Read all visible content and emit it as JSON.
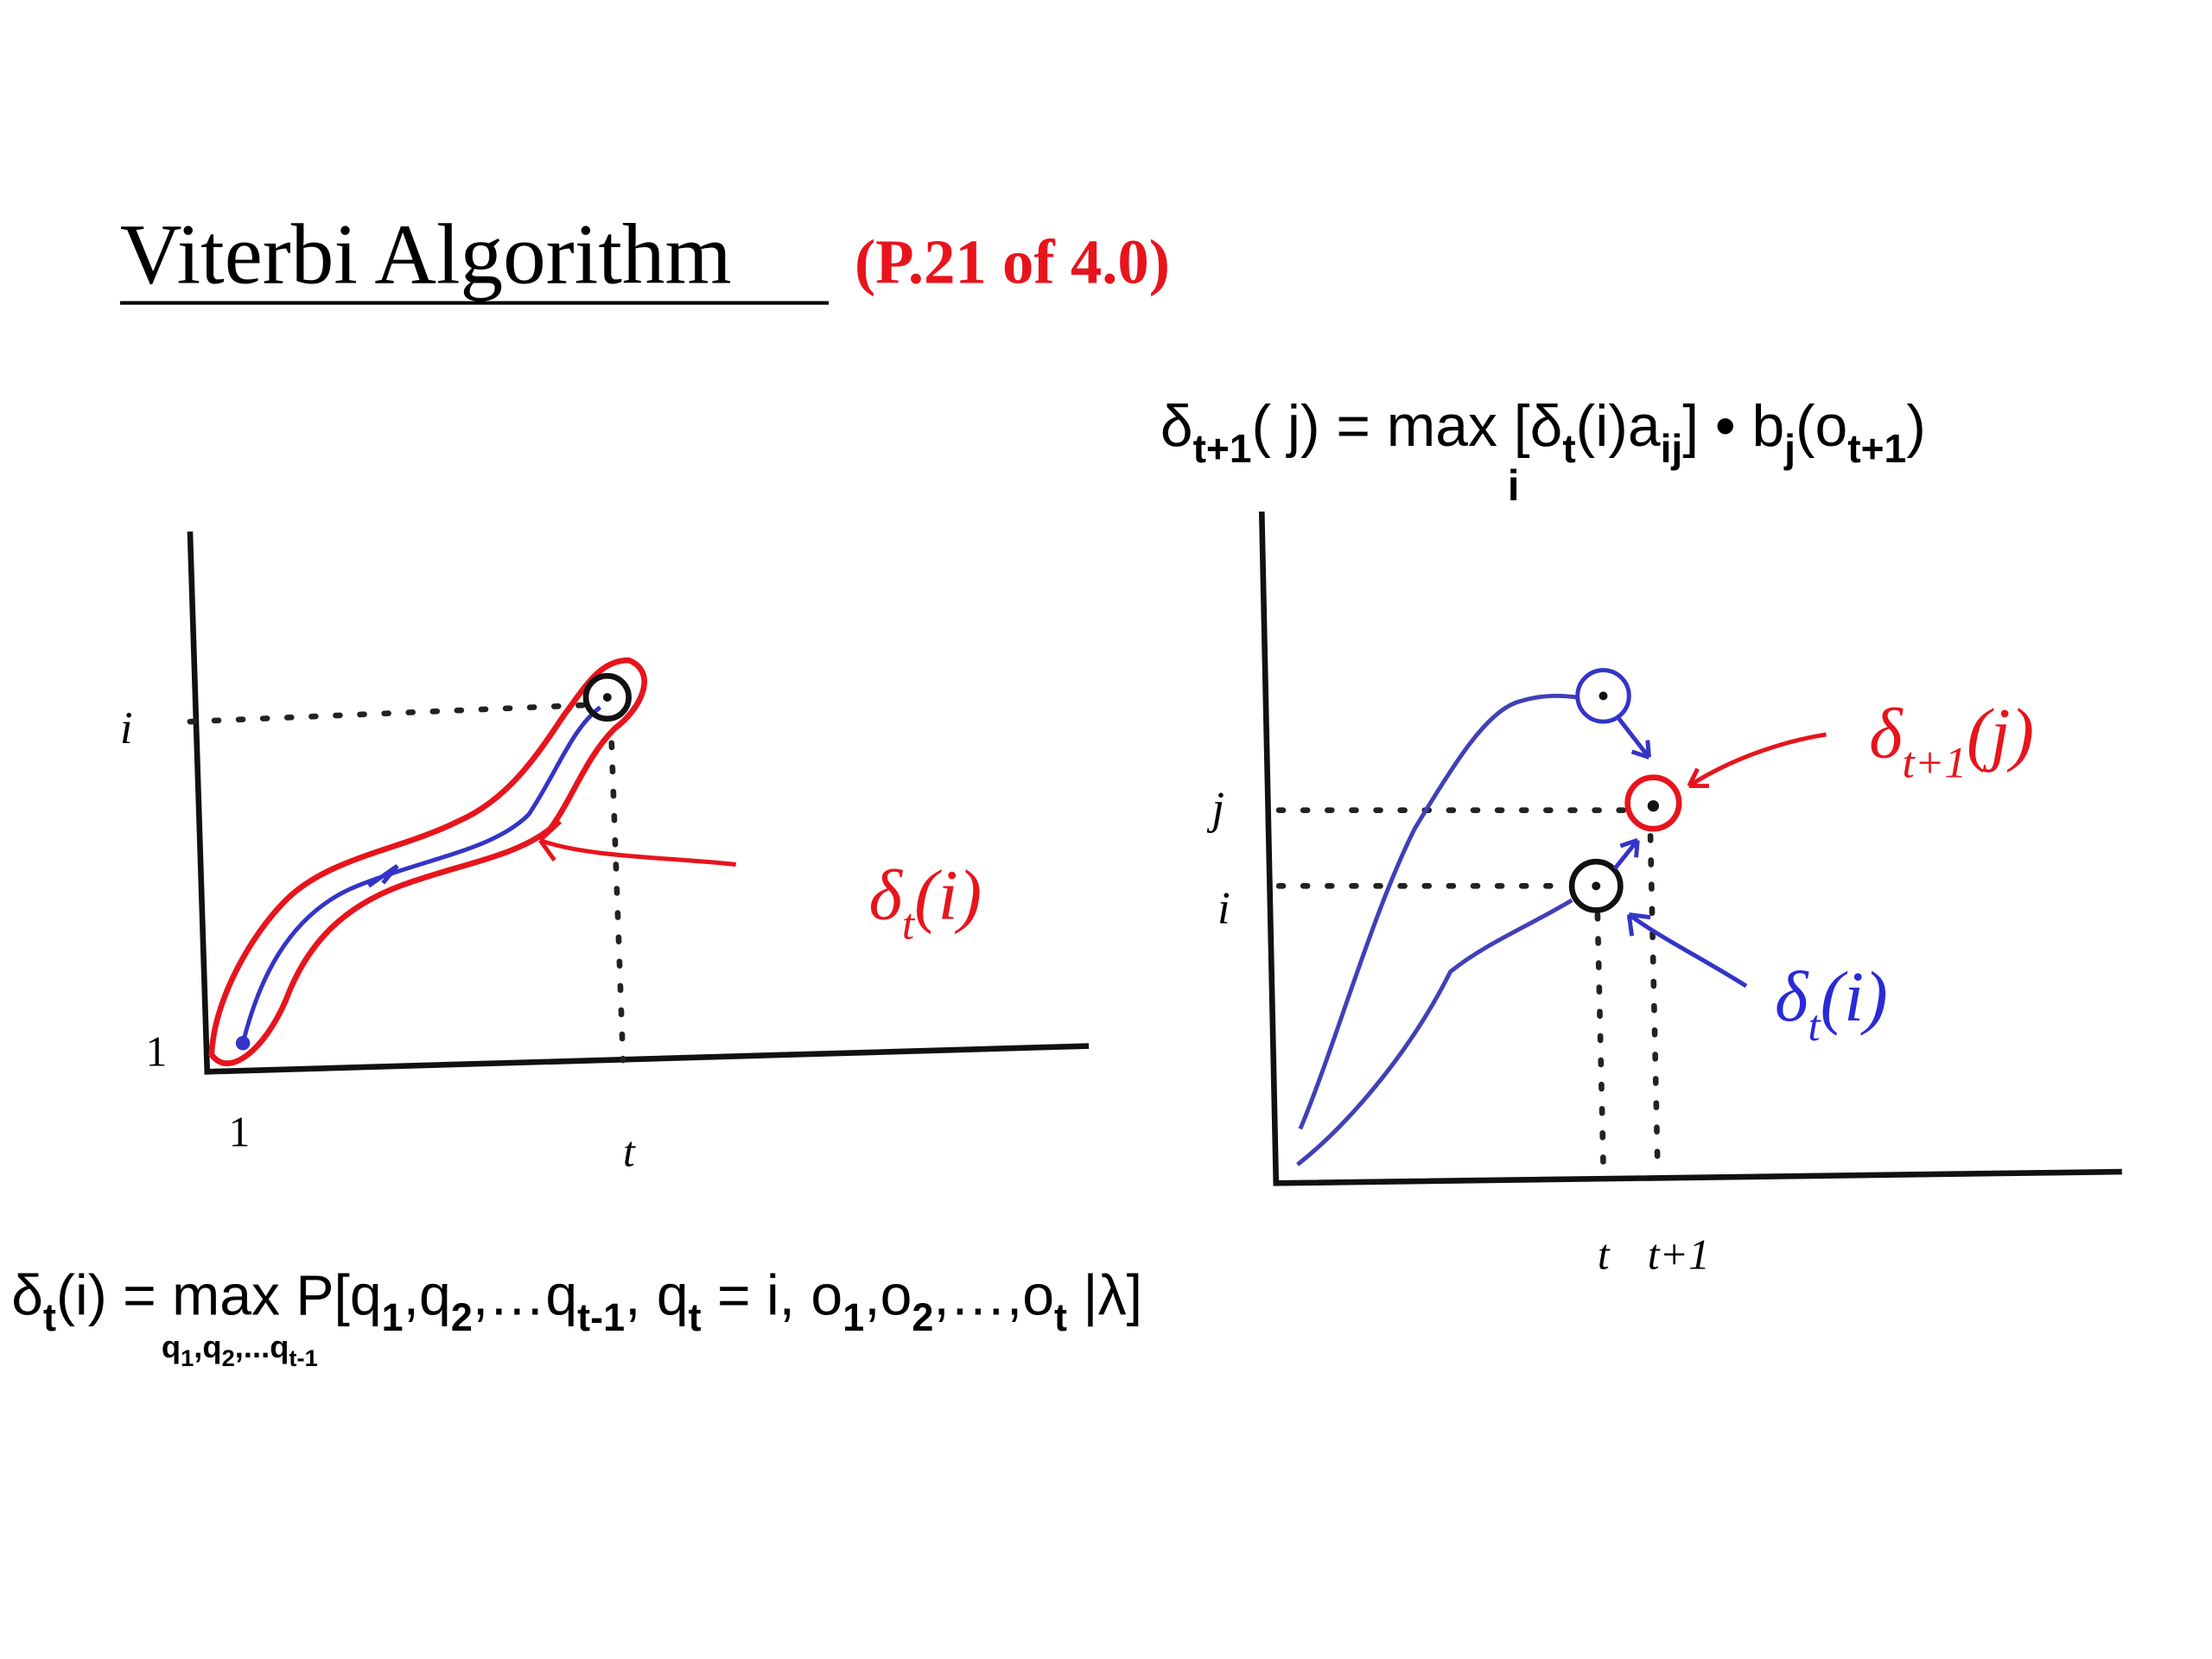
{
  "title": "Viterbi Algorithm",
  "source": "(P.21 of 4.0)",
  "top_formula": {
    "parts": [
      {
        "base": "δ",
        "sub": "t+1"
      },
      {
        "base": "( j) = max"
      },
      {
        "base": " [δ",
        "sub": "t"
      },
      {
        "base": "(i)a",
        "sub": "ij"
      },
      {
        "base": "] • b",
        "sub": "j"
      },
      {
        "base": "(o",
        "sub": "t+1"
      },
      {
        "base": ")"
      }
    ],
    "under_max": [
      {
        "base": "i"
      }
    ]
  },
  "bottom_formula": {
    "parts": [
      {
        "base": "δ",
        "sub": "t"
      },
      {
        "base": "(i) = max"
      },
      {
        "base": " P[q",
        "sub": "1"
      },
      {
        "base": ",q",
        "sub": "2"
      },
      {
        "base": ",…q",
        "sub": "t-1"
      },
      {
        "base": ", q",
        "sub": "t"
      },
      {
        "base": " = i, o",
        "sub": "1"
      },
      {
        "base": ",o",
        "sub": "2"
      },
      {
        "base": ",…,o",
        "sub": "t"
      },
      {
        "base": " |λ]"
      }
    ],
    "under_max": [
      {
        "base": "q",
        "sub": "1"
      },
      {
        "base": ",q",
        "sub": "2"
      },
      {
        "base": ",...q",
        "sub": "t-1"
      }
    ]
  },
  "left_diagram": {
    "y_labels": [
      "i",
      "1"
    ],
    "x_labels": [
      "1",
      "t"
    ],
    "annotation": [
      {
        "base": "δ",
        "sub": "t"
      },
      {
        "base": "(i)"
      }
    ]
  },
  "right_diagram": {
    "y_labels": [
      "j",
      "i"
    ],
    "x_labels": [
      "t",
      "t+1"
    ],
    "annotation_red": [
      {
        "base": "δ",
        "sub": "t+1"
      },
      {
        "base": "(j)"
      }
    ],
    "annotation_blue": [
      {
        "base": "δ",
        "sub": "t"
      },
      {
        "base": "(i)"
      }
    ]
  }
}
